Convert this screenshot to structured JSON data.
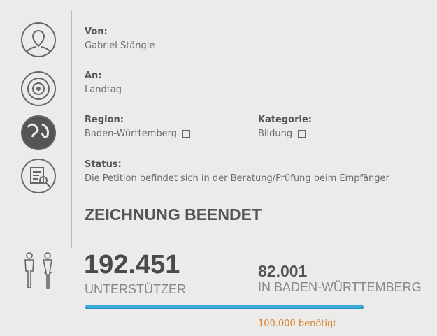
{
  "details": [
    {
      "label": "Von:",
      "value": "Gabriel Stängle"
    },
    {
      "label": "An:",
      "value": "Landtag"
    },
    {
      "label": "Region:",
      "value": "Baden-Württemberg"
    },
    {
      "label": "Kategorie:",
      "value": "Bildung"
    },
    {
      "label": "Status:",
      "value": "Die Petition befindet sich in der Beratung/Prüfung beim Empfänger"
    }
  ],
  "status_heading": "ZEICHNUNG BEENDET",
  "supporters": {
    "count": "192.451",
    "label": "UNTERSTÜTZER"
  },
  "regional": {
    "count": "82.001",
    "label": "IN BADEN-WÜRTTEMBERG"
  },
  "goal": "100.000 benötigt"
}
